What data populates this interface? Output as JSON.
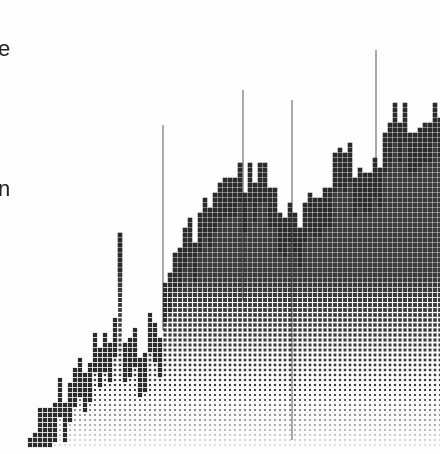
{
  "fragments": [
    "e",
    "n"
  ]
}
